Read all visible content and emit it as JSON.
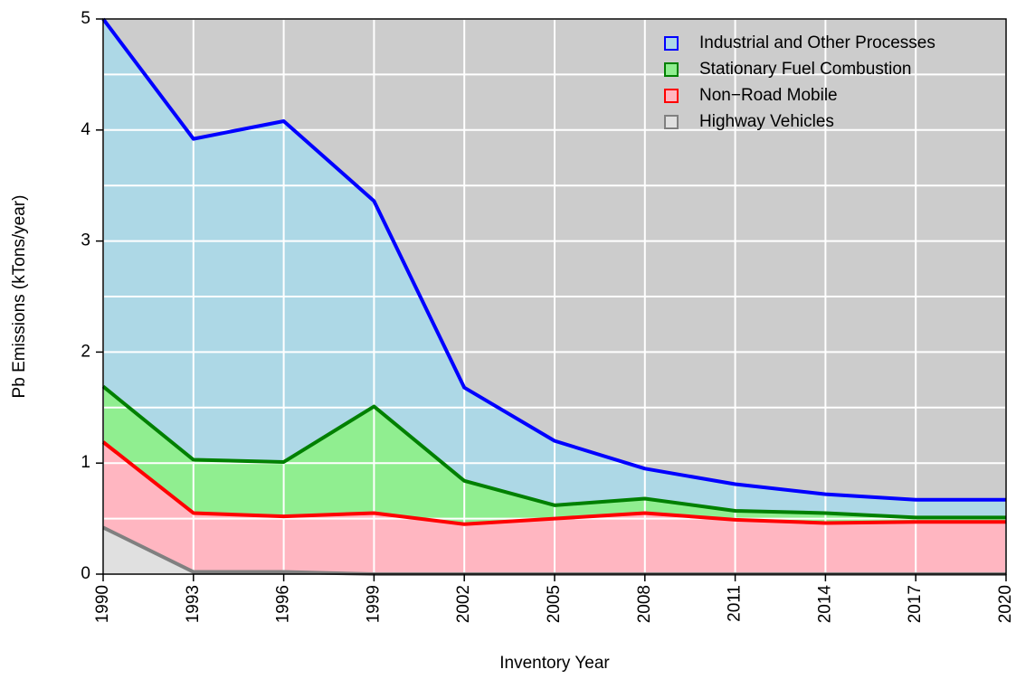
{
  "chart_data": {
    "type": "stacked-area",
    "x_label": "Inventory Year",
    "y_label": "Pb Emissions (kTons/year)",
    "x": [
      1990,
      1993,
      1996,
      1999,
      2002,
      2005,
      2008,
      2011,
      2014,
      2017,
      2020
    ],
    "xlim": [
      1990,
      2020
    ],
    "xticks": [
      1990,
      1993,
      1996,
      1999,
      2002,
      2005,
      2008,
      2011,
      2014,
      2017,
      2020
    ],
    "ylim": [
      0,
      5
    ],
    "yticks": [
      0,
      1,
      2,
      3,
      4,
      5
    ],
    "ygrid": [
      0,
      0.5,
      1,
      1.5,
      2,
      2.5,
      3,
      3.5,
      4,
      4.5,
      5
    ],
    "grid": true,
    "background": "#cccccc",
    "legend": "top-right",
    "series": [
      {
        "name": "Highway Vehicles",
        "color": "#808080",
        "fill": "#e0e0e0",
        "values": [
          0.42,
          0.02,
          0.02,
          0,
          0,
          0,
          0,
          0,
          0,
          0,
          0
        ]
      },
      {
        "name": "Non−Road Mobile",
        "color": "#ff0000",
        "fill": "#ffb6c1",
        "values": [
          0.77,
          0.53,
          0.5,
          0.55,
          0.45,
          0.5,
          0.55,
          0.49,
          0.46,
          0.47,
          0.47
        ]
      },
      {
        "name": "Stationary Fuel Combustion",
        "color": "#008000",
        "fill": "#90ee90",
        "values": [
          0.5,
          0.48,
          0.49,
          0.96,
          0.39,
          0.12,
          0.13,
          0.08,
          0.09,
          0.04,
          0.04
        ]
      },
      {
        "name": "Industrial and Other Processes",
        "color": "#0000ff",
        "fill": "#add8e6",
        "values": [
          3.31,
          2.89,
          3.07,
          1.85,
          0.84,
          0.58,
          0.27,
          0.24,
          0.17,
          0.16,
          0.16
        ]
      }
    ]
  }
}
